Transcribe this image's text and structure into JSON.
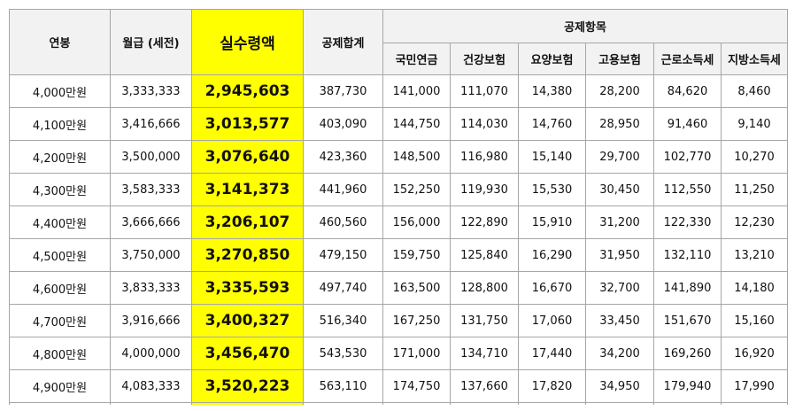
{
  "headers": {
    "annual": "연봉",
    "monthly": "월급 (세전)",
    "net": "실수령액",
    "total_deduction": "공제합계",
    "deductions_group": "공제항목",
    "pension": "국민연금",
    "health": "건강보험",
    "care": "요양보험",
    "employment": "고용보험",
    "income_tax": "근로소득세",
    "local_tax": "지방소득세"
  },
  "rows": [
    {
      "annual": "4,000만원",
      "monthly": "3,333,333",
      "net": "2,945,603",
      "total": "387,730",
      "pension": "141,000",
      "health": "111,070",
      "care": "14,380",
      "employment": "28,200",
      "income_tax": "84,620",
      "local_tax": "8,460"
    },
    {
      "annual": "4,100만원",
      "monthly": "3,416,666",
      "net": "3,013,577",
      "total": "403,090",
      "pension": "144,750",
      "health": "114,030",
      "care": "14,760",
      "employment": "28,950",
      "income_tax": "91,460",
      "local_tax": "9,140"
    },
    {
      "annual": "4,200만원",
      "monthly": "3,500,000",
      "net": "3,076,640",
      "total": "423,360",
      "pension": "148,500",
      "health": "116,980",
      "care": "15,140",
      "employment": "29,700",
      "income_tax": "102,770",
      "local_tax": "10,270"
    },
    {
      "annual": "4,300만원",
      "monthly": "3,583,333",
      "net": "3,141,373",
      "total": "441,960",
      "pension": "152,250",
      "health": "119,930",
      "care": "15,530",
      "employment": "30,450",
      "income_tax": "112,550",
      "local_tax": "11,250"
    },
    {
      "annual": "4,400만원",
      "monthly": "3,666,666",
      "net": "3,206,107",
      "total": "460,560",
      "pension": "156,000",
      "health": "122,890",
      "care": "15,910",
      "employment": "31,200",
      "income_tax": "122,330",
      "local_tax": "12,230"
    },
    {
      "annual": "4,500만원",
      "monthly": "3,750,000",
      "net": "3,270,850",
      "total": "479,150",
      "pension": "159,750",
      "health": "125,840",
      "care": "16,290",
      "employment": "31,950",
      "income_tax": "132,110",
      "local_tax": "13,210"
    },
    {
      "annual": "4,600만원",
      "monthly": "3,833,333",
      "net": "3,335,593",
      "total": "497,740",
      "pension": "163,500",
      "health": "128,800",
      "care": "16,670",
      "employment": "32,700",
      "income_tax": "141,890",
      "local_tax": "14,180"
    },
    {
      "annual": "4,700만원",
      "monthly": "3,916,666",
      "net": "3,400,327",
      "total": "516,340",
      "pension": "167,250",
      "health": "131,750",
      "care": "17,060",
      "employment": "33,450",
      "income_tax": "151,670",
      "local_tax": "15,160"
    },
    {
      "annual": "4,800만원",
      "monthly": "4,000,000",
      "net": "3,456,470",
      "total": "543,530",
      "pension": "171,000",
      "health": "134,710",
      "care": "17,440",
      "employment": "34,200",
      "income_tax": "169,260",
      "local_tax": "16,920"
    },
    {
      "annual": "4,900만원",
      "monthly": "4,083,333",
      "net": "3,520,223",
      "total": "563,110",
      "pension": "174,750",
      "health": "137,660",
      "care": "17,820",
      "employment": "34,950",
      "income_tax": "179,940",
      "local_tax": "17,990"
    }
  ],
  "colors": {
    "highlight": "#ffff00",
    "header_bg": "#f2f2f2",
    "border": "#a6a6a6"
  }
}
